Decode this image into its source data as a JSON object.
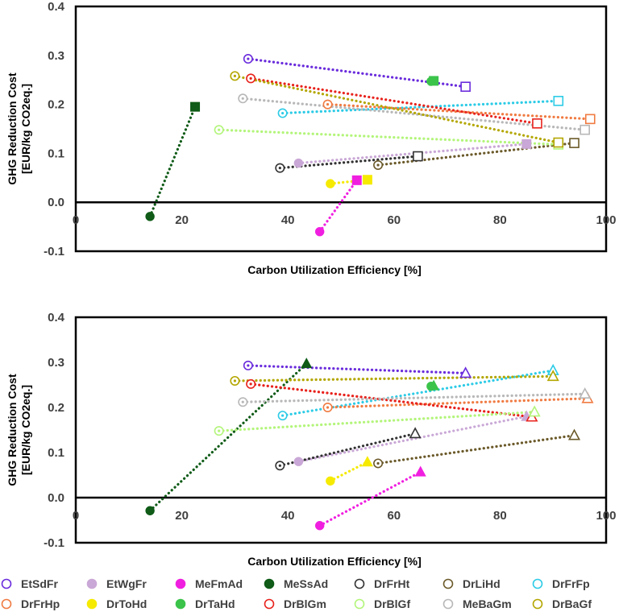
{
  "chart_data": [
    {
      "type": "scatter",
      "name": "top",
      "xlabel": "Carbon Utilization Efficiency [%]",
      "ylabel_lines": [
        "GHG Reduction Cost",
        "[EUR/kg CO2eq.]"
      ],
      "xlim": [
        0,
        100
      ],
      "ylim": [
        -0.1,
        0.4
      ],
      "xticks": [
        "0",
        "20",
        "40",
        "60",
        "80",
        "100"
      ],
      "yticks": [
        "-0.1",
        "0.0",
        "0.1",
        "0.2",
        "0.3",
        "0.4"
      ],
      "end_marker": "square",
      "series": [
        {
          "name": "EtSdFr",
          "color": "#6a2cdc",
          "open": true,
          "start": [
            32.5,
            0.293
          ],
          "end": [
            73.5,
            0.236
          ]
        },
        {
          "name": "EtWgFr",
          "color": "#c9a7d6",
          "open": false,
          "start": [
            42,
            0.08
          ],
          "end": [
            85,
            0.119
          ]
        },
        {
          "name": "MeFmAd",
          "color": "#f01fe0",
          "open": false,
          "start": [
            46,
            -0.06
          ],
          "end": [
            53,
            0.045
          ]
        },
        {
          "name": "MeSsAd",
          "color": "#0f5b17",
          "open": false,
          "start": [
            14,
            -0.029
          ],
          "end": [
            22.5,
            0.195
          ]
        },
        {
          "name": "DrFrHt",
          "color": "#333333",
          "open": true,
          "start": [
            38.5,
            0.07
          ],
          "end": [
            64.5,
            0.094
          ]
        },
        {
          "name": "DrLiHd",
          "color": "#6b5a2a",
          "open": true,
          "start": [
            57,
            0.076
          ],
          "end": [
            94,
            0.121
          ]
        },
        {
          "name": "DrFrFp",
          "color": "#2ccbe6",
          "open": true,
          "start": [
            39,
            0.182
          ],
          "end": [
            91,
            0.207
          ]
        },
        {
          "name": "DrFrHp",
          "color": "#f07b42",
          "open": true,
          "start": [
            47.5,
            0.2
          ],
          "end": [
            97,
            0.17
          ]
        },
        {
          "name": "DrToHd",
          "color": "#f5ea00",
          "open": false,
          "start": [
            48,
            0.038
          ],
          "end": [
            55,
            0.046
          ]
        },
        {
          "name": "DrTaHd",
          "color": "#3bc34a",
          "open": false,
          "start": [
            67,
            0.247
          ],
          "end": [
            67.5,
            0.248
          ]
        },
        {
          "name": "DrBlGm",
          "color": "#e8221c",
          "open": true,
          "start": [
            33,
            0.253
          ],
          "end": [
            87,
            0.161
          ]
        },
        {
          "name": "DrBlGf",
          "color": "#b3f57a",
          "open": true,
          "start": [
            27,
            0.148
          ],
          "end": [
            91,
            0.118
          ]
        },
        {
          "name": "MeBaGm",
          "color": "#b8b8b8",
          "open": true,
          "start": [
            31.5,
            0.212
          ],
          "end": [
            96,
            0.148
          ]
        },
        {
          "name": "DrBaGf",
          "color": "#b3a600",
          "open": true,
          "start": [
            30,
            0.258
          ],
          "end": [
            91,
            0.122
          ]
        }
      ]
    },
    {
      "type": "scatter",
      "name": "bottom",
      "xlabel": "Carbon Utilization Efficiency [%]",
      "ylabel_lines": [
        "GHG Reduction Cost",
        "[EUR/kg CO2eq.]"
      ],
      "xlim": [
        0,
        100
      ],
      "ylim": [
        -0.1,
        0.4
      ],
      "xticks": [
        "0",
        "20",
        "40",
        "60",
        "80",
        "100"
      ],
      "yticks": [
        "-0.1",
        "0.0",
        "0.1",
        "0.2",
        "0.3",
        "0.4"
      ],
      "end_marker": "triangle",
      "series": [
        {
          "name": "EtSdFr",
          "color": "#6a2cdc",
          "open": true,
          "start": [
            32.5,
            0.293
          ],
          "end": [
            73.5,
            0.276
          ]
        },
        {
          "name": "EtWgFr",
          "color": "#c9a7d6",
          "open": false,
          "start": [
            42,
            0.08
          ],
          "end": [
            85,
            0.18
          ]
        },
        {
          "name": "MeFmAd",
          "color": "#f01fe0",
          "open": false,
          "start": [
            46,
            -0.062
          ],
          "end": [
            65,
            0.057
          ]
        },
        {
          "name": "MeSsAd",
          "color": "#0f5b17",
          "open": false,
          "start": [
            14,
            -0.029
          ],
          "end": [
            43.5,
            0.297
          ]
        },
        {
          "name": "DrFrHt",
          "color": "#333333",
          "open": true,
          "start": [
            38.5,
            0.071
          ],
          "end": [
            64,
            0.142
          ]
        },
        {
          "name": "DrLiHd",
          "color": "#6b5a2a",
          "open": true,
          "start": [
            57,
            0.076
          ],
          "end": [
            94,
            0.138
          ]
        },
        {
          "name": "DrFrFp",
          "color": "#2ccbe6",
          "open": true,
          "start": [
            39,
            0.182
          ],
          "end": [
            90,
            0.282
          ]
        },
        {
          "name": "DrFrHp",
          "color": "#f07b42",
          "open": true,
          "start": [
            47.5,
            0.2
          ],
          "end": [
            96.5,
            0.22
          ]
        },
        {
          "name": "DrToHd",
          "color": "#f5ea00",
          "open": false,
          "start": [
            48,
            0.037
          ],
          "end": [
            55,
            0.079
          ]
        },
        {
          "name": "DrTaHd",
          "color": "#3bc34a",
          "open": false,
          "start": [
            67,
            0.247
          ],
          "end": [
            67.5,
            0.248
          ]
        },
        {
          "name": "DrBlGm",
          "color": "#e8221c",
          "open": true,
          "start": [
            33,
            0.252
          ],
          "end": [
            86,
            0.179
          ]
        },
        {
          "name": "DrBlGf",
          "color": "#b3f57a",
          "open": true,
          "start": [
            27,
            0.148
          ],
          "end": [
            86.5,
            0.19
          ]
        },
        {
          "name": "MeBaGm",
          "color": "#b8b8b8",
          "open": true,
          "start": [
            31.5,
            0.212
          ],
          "end": [
            96,
            0.23
          ]
        },
        {
          "name": "DrBaGf",
          "color": "#b3a600",
          "open": true,
          "start": [
            30,
            0.259
          ],
          "end": [
            90,
            0.269
          ]
        }
      ]
    }
  ],
  "legend": {
    "placement": "bottom",
    "items": [
      {
        "label": "EtSdFr",
        "color": "#6a2cdc",
        "open": true
      },
      {
        "label": "EtWgFr",
        "color": "#c9a7d6",
        "open": false
      },
      {
        "label": "MeFmAd",
        "color": "#f01fe0",
        "open": false
      },
      {
        "label": "MeSsAd",
        "color": "#0f5b17",
        "open": false
      },
      {
        "label": "DrFrHt",
        "color": "#333333",
        "open": true
      },
      {
        "label": "DrLiHd",
        "color": "#6b5a2a",
        "open": true
      },
      {
        "label": "DrFrFp",
        "color": "#2ccbe6",
        "open": true
      },
      {
        "label": "DrFrHp",
        "color": "#f07b42",
        "open": true
      },
      {
        "label": "DrToHd",
        "color": "#f5ea00",
        "open": false
      },
      {
        "label": "DrTaHd",
        "color": "#3bc34a",
        "open": false
      },
      {
        "label": "DrBlGm",
        "color": "#e8221c",
        "open": true
      },
      {
        "label": "DrBlGf",
        "color": "#b3f57a",
        "open": true
      },
      {
        "label": "MeBaGm",
        "color": "#b8b8b8",
        "open": true
      },
      {
        "label": "DrBaGf",
        "color": "#b3a600",
        "open": true
      }
    ]
  }
}
